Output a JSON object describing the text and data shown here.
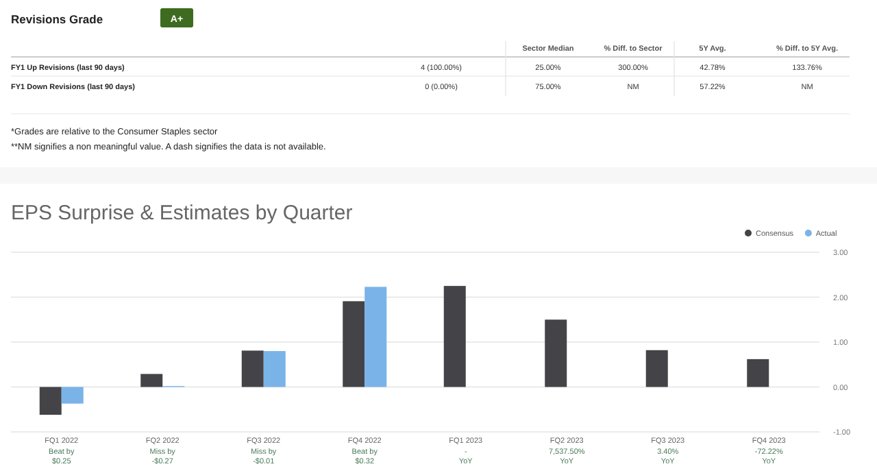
{
  "chart_data": [
    {
      "type": "other",
      "title": "Revisions Grade",
      "annotations": [
        "A+",
        "Sector Median",
        "% Diff. to Sector",
        "5Y Avg.",
        "% Diff. to 5Y Avg.",
        "FY1 Up Revisions (last 90 days)",
        "4 (100.00%)",
        "25.00%",
        "300.00%",
        "42.78%",
        "133.76%",
        "FY1 Down Revisions (last 90 days)",
        "0 (0.00%)",
        "75.00%",
        "NM",
        "57.22%",
        "NM",
        "*Grades are relative to the Consumer Staples sector",
        "**NM signifies a non meaningful value. A dash signifies the data is not available."
      ]
    },
    {
      "type": "bar",
      "title": "EPS Surprise & Estimates by Quarter",
      "categories": [
        "FQ1 2022",
        "FQ2 2022",
        "FQ3 2022",
        "FQ4 2022",
        "FQ1 2023",
        "FQ2 2023",
        "FQ3 2023",
        "FQ4 2023"
      ],
      "series": [
        {
          "name": "Consensus",
          "color": "#444448",
          "values": [
            -0.62,
            0.29,
            0.81,
            1.91,
            2.25,
            1.5,
            0.82,
            0.62
          ]
        },
        {
          "name": "Actual",
          "color": "#7ab3e8",
          "values": [
            -0.37,
            0.02,
            0.8,
            2.23,
            null,
            null,
            null,
            null
          ]
        }
      ],
      "ylim": [
        -1,
        3
      ],
      "yticks": [
        {
          "value": 3,
          "label": "3.00"
        },
        {
          "value": 2,
          "label": "2.00"
        },
        {
          "value": 1,
          "label": "1.00"
        },
        {
          "value": 0,
          "label": "0.00"
        },
        {
          "value": -1,
          "label": "-1.00"
        }
      ],
      "grid": "y",
      "legend": "top right",
      "annotations": [
        "Beat by\n$0.25",
        "Miss by\n-$0.27",
        "Miss by\n-$0.01",
        "Beat by\n$0.32",
        "-\nYoY",
        "7,537.50%\nYoY",
        "3.40%\nYoY",
        "-72.22%\nYoY"
      ]
    }
  ]
}
